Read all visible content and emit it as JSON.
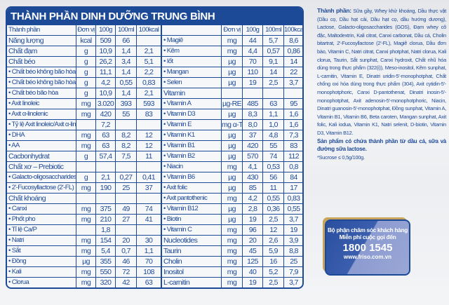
{
  "title": "THÀNH PHẦN DINH DƯỠNG TRUNG BÌNH",
  "columns": [
    "Thành phần",
    "Đơn vị",
    "100g",
    "100ml",
    "100kcal"
  ],
  "right_columns": [
    "",
    "Đơn vị",
    "100g",
    "100ml",
    "100kcal"
  ],
  "left_rows": [
    [
      "Năng lượng",
      "kcal",
      "509",
      "66",
      ""
    ],
    [
      "Chất đạm",
      "g",
      "10,9",
      "1,4",
      "2,1"
    ],
    [
      "Chất béo",
      "g",
      "26,2",
      "3,4",
      "5,1"
    ],
    [
      "• Chất béo không bão hòa đơn",
      "g",
      "11,1",
      "1,4",
      "2,2"
    ],
    [
      "• Chất béo không bão hòa đa",
      "g",
      "4,2",
      "0,55",
      "0,83"
    ],
    [
      "• Chất béo bão hòa",
      "g",
      "10,9",
      "1,4",
      "2,1"
    ],
    [
      "• Axit linoleic",
      "mg",
      "3.020",
      "393",
      "593"
    ],
    [
      "• Axit α-linolenic",
      "mg",
      "420",
      "55",
      "83"
    ],
    [
      "• Tỷ lệ Axit linoleic/Axit α-linolenic",
      "",
      "7,2",
      "",
      ""
    ],
    [
      "• DHA",
      "mg",
      "63",
      "8,2",
      "12"
    ],
    [
      "• AA",
      "mg",
      "63",
      "8,2",
      "12"
    ],
    [
      "Cacbonhydrat",
      "g",
      "57,4",
      "7,5",
      "11"
    ],
    [
      "Chất xơ – Prebiotic",
      "",
      "",
      "",
      ""
    ],
    [
      "• Galacto-oligosaccharides (GOS)",
      "g",
      "2,1",
      "0,27",
      "0,41"
    ],
    [
      "• 2'-Fucosyllactose (2'-FL)",
      "mg",
      "190",
      "25",
      "37"
    ],
    [
      "Chất khoáng",
      "",
      "",
      "",
      ""
    ],
    [
      "• Canxi",
      "mg",
      "375",
      "49",
      "74"
    ],
    [
      "• Phốt pho",
      "mg",
      "210",
      "27",
      "41"
    ],
    [
      "• Tỉ lệ Ca/P",
      "",
      "1,8",
      "",
      ""
    ],
    [
      "• Natri",
      "mg",
      "154",
      "20",
      "30"
    ],
    [
      "• Sắt",
      "mg",
      "5,4",
      "0,7",
      "1,1"
    ],
    [
      "• Đồng",
      "µg",
      "355",
      "46",
      "70"
    ],
    [
      "• Kali",
      "mg",
      "550",
      "72",
      "108"
    ],
    [
      "• Clorua",
      "mg",
      "320",
      "42",
      "63"
    ]
  ],
  "right_rows": [
    [
      "• Magiê",
      "mg",
      "44",
      "5,7",
      "8,6"
    ],
    [
      "• Kẽm",
      "mg",
      "4,4",
      "0,57",
      "0,86"
    ],
    [
      "• Iốt",
      "µg",
      "70",
      "9,1",
      "14"
    ],
    [
      "• Mangan",
      "µg",
      "110",
      "14",
      "22"
    ],
    [
      "• Selen",
      "µg",
      "19",
      "2,5",
      "3,7"
    ],
    [
      "Vitamin",
      "",
      "",
      "",
      ""
    ],
    [
      "• Vitamin A",
      "µg-RE",
      "485",
      "63",
      "95"
    ],
    [
      "• Vitamin D3",
      "µg",
      "8,3",
      "1,1",
      "1,6"
    ],
    [
      "• Vitamin E",
      "mg α-TE",
      "8,0",
      "1,0",
      "1,6"
    ],
    [
      "• Vitamin K1",
      "µg",
      "37",
      "4,8",
      "7,3"
    ],
    [
      "• Vitamin B1",
      "µg",
      "420",
      "55",
      "83"
    ],
    [
      "• Vitamin B2",
      "µg",
      "570",
      "74",
      "112"
    ],
    [
      "• Niacin",
      "mg",
      "4,1",
      "0,53",
      "0,8"
    ],
    [
      "• Vitamin B6",
      "µg",
      "430",
      "56",
      "84"
    ],
    [
      "• Axit folic",
      "µg",
      "85",
      "11",
      "17"
    ],
    [
      "• Axit pantothenic",
      "mg",
      "4,2",
      "0,55",
      "0,83"
    ],
    [
      "• Vitamin B12",
      "µg",
      "2,8",
      "0,36",
      "0,55"
    ],
    [
      "• Biotin",
      "µg",
      "19",
      "2,5",
      "3,7"
    ],
    [
      "• Vitamin C",
      "mg",
      "96",
      "12",
      "19"
    ],
    [
      "Nucleotides",
      "mg",
      "20",
      "2,6",
      "3,9"
    ],
    [
      "Taurin",
      "mg",
      "45",
      "5,9",
      "8,8"
    ],
    [
      "Cholin",
      "mg",
      "125",
      "16",
      "25"
    ],
    [
      "Inositol",
      "mg",
      "40",
      "5,2",
      "7,9"
    ],
    [
      "L-carnitin",
      "mg",
      "19",
      "2,5",
      "3,7"
    ]
  ],
  "ingredients_label": "Thành phần:",
  "ingredients": "Sữa gầy, Whey khử khoáng, Dầu thực vật (Dầu cọ, Dầu hạt cải, Dầu hạt cọ, dầu hướng dương), Lactose, Galacto-oligosaccharides (GOS), Đạm whey cô đặc, Maltodextrin, Kali citrat, Canxi carbonat, Dầu cá, Cholin bitartrat, 2'-Fucosyllactose (2'-FL), Magiê clorua, Dầu đơn bào, Vitamin C, Natri citrat, Canxi photphat, Natri clorua, Kali clorua, Taurin, Sắt sunphat, Canxi hydroxit, Chất nhũ hóa dùng trong thực phẩm (322(i)), Meso-inositol, Kẽm sunphat, L-carnitin, Vitamin E, Dinatri uridin-5'-monophotphat, Chất chống oxi hóa dùng trong thực phẩm (304), Axit cytidin-5'-monophotphoric, Canxi D-pantothenat, Dinatri inosin-5'-monophotphat, Axit adenosin-5'-monophotphoric, Niacin, Dinatri guanosin-5'-monophotphat, Đồng sunphat, Vitamin A, Vitamin B1, Vitamin B6, Beta caroten, Mangan sunphat, Axit folic, Kali iodua, Vitamin K1, Natri selenit, D-biotin, Vitamin D3, Vitamin B12.",
  "note": "Sản phẩm có chứa thành phần từ dầu cá, sữa và đường sữa lactose.",
  "sucrose": "*Sucrose ≤ 0,5g/100g.",
  "hotline": {
    "line1": "Bộ phận chăm sóc khách hàng",
    "line2": "Miễn phí cuộc gọi đến",
    "phone": "1800 1545",
    "website": "www.friso.com.vn"
  },
  "colors": {
    "brand_blue": "#1d4a96",
    "gold": "#c9a45a"
  }
}
